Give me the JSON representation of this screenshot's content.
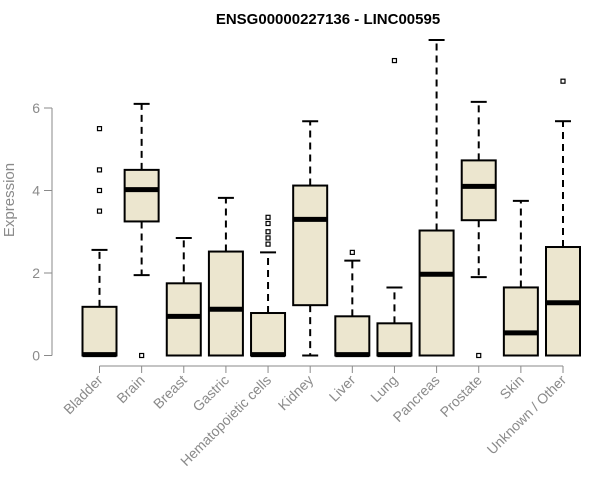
{
  "chart_data": {
    "type": "boxplot",
    "title": "ENSG00000227136 - LINC00595",
    "xlabel": "",
    "ylabel": "Expression",
    "ylim": [
      0,
      7.6
    ],
    "yticks": [
      0,
      2,
      4,
      6
    ],
    "box_fill": "#ece6cf",
    "box_stroke": "#000000",
    "axis_color": "#8a8a8a",
    "grid": false,
    "categories": [
      "Bladder",
      "Brain",
      "Breast",
      "Gastric",
      "Hematopoietic cells",
      "Kidney",
      "Liver",
      "Lung",
      "Pancreas",
      "Prostate",
      "Skin",
      "Unknown / Other"
    ],
    "boxes": [
      {
        "min": 0,
        "q1": 0,
        "median": 0.02,
        "q3": 1.18,
        "max": 2.56,
        "outliers": [
          3.5,
          4.0,
          4.5,
          5.5
        ]
      },
      {
        "min": 1.95,
        "q1": 3.25,
        "median": 4.02,
        "q3": 4.5,
        "max": 6.1,
        "outliers": [
          0
        ]
      },
      {
        "min": 0,
        "q1": 0,
        "median": 0.95,
        "q3": 1.75,
        "max": 2.85,
        "outliers": []
      },
      {
        "min": 0,
        "q1": 0,
        "median": 1.12,
        "q3": 2.52,
        "max": 3.82,
        "outliers": []
      },
      {
        "min": 0,
        "q1": 0,
        "median": 0.02,
        "q3": 1.03,
        "max": 2.5,
        "outliers": [
          2.7,
          2.85,
          3.0,
          3.2,
          3.35
        ]
      },
      {
        "min": 0,
        "q1": 1.22,
        "median": 3.3,
        "q3": 4.12,
        "max": 5.68,
        "outliers": []
      },
      {
        "min": 0,
        "q1": 0,
        "median": 0.02,
        "q3": 0.95,
        "max": 2.3,
        "outliers": [
          2.5
        ]
      },
      {
        "min": 0,
        "q1": 0,
        "median": 0.02,
        "q3": 0.78,
        "max": 1.65,
        "outliers": [
          7.15
        ]
      },
      {
        "min": 0,
        "q1": 0,
        "median": 1.97,
        "q3": 3.03,
        "max": 7.65,
        "outliers": []
      },
      {
        "min": 1.9,
        "q1": 3.28,
        "median": 4.1,
        "q3": 4.73,
        "max": 6.15,
        "outliers": [
          0
        ]
      },
      {
        "min": 0,
        "q1": 0,
        "median": 0.55,
        "q3": 1.65,
        "max": 3.75,
        "outliers": []
      },
      {
        "min": 0,
        "q1": 0,
        "median": 1.28,
        "q3": 2.63,
        "max": 5.68,
        "outliers": [
          6.65
        ]
      }
    ]
  }
}
